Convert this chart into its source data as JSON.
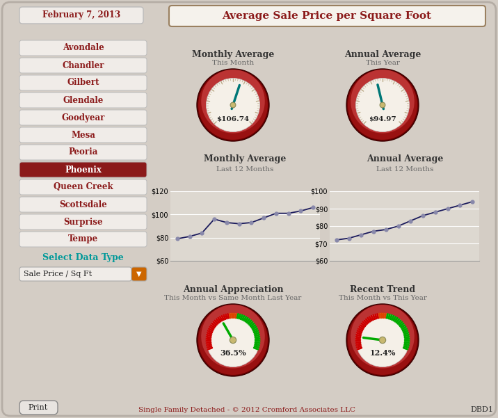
{
  "date": "February 7, 2013",
  "title": "Average Sale Price per Square Foot",
  "cities": [
    "Avondale",
    "Chandler",
    "Gilbert",
    "Glendale",
    "Goodyear",
    "Mesa",
    "Peoria",
    "Phoenix",
    "Queen Creek",
    "Scottsdale",
    "Surprise",
    "Tempe"
  ],
  "selected_city": "Phoenix",
  "select_label": "Select Data Type",
  "dropdown_label": "Sale Price / Sq Ft",
  "monthly_avg_value": "$106.74",
  "annual_avg_value": "$94.97",
  "monthly_avg_title": "Monthly Average",
  "monthly_avg_sub": "This Month",
  "annual_avg_title": "Annual Average",
  "annual_avg_sub": "This Year",
  "monthly_chart_title": "Monthly Average",
  "monthly_chart_sub": "Last 12 Months",
  "annual_chart_title": "Annual Average",
  "annual_chart_sub": "Last 12 Months",
  "appreciation_title": "Annual Appreciation",
  "appreciation_sub": "This Month vs Same Month Last Year",
  "appreciation_value": "36.5%",
  "trend_title": "Recent Trend",
  "trend_sub": "This Month vs This Year",
  "trend_value": "12.4%",
  "monthly_data": [
    79,
    81,
    84,
    96,
    93,
    92,
    93,
    97,
    101,
    101,
    103,
    106
  ],
  "annual_data": [
    72,
    73,
    75,
    77,
    78,
    80,
    83,
    86,
    88,
    90,
    92,
    94
  ],
  "monthly_ylim": [
    60,
    120
  ],
  "annual_ylim": [
    60,
    100
  ],
  "monthly_yticks": [
    60,
    80,
    100,
    120
  ],
  "annual_yticks": [
    60,
    70,
    80,
    90,
    100
  ],
  "bg_color": "#d4cdc5",
  "city_bg": "#f0ece8",
  "city_selected_bg": "#8b1a1a",
  "city_text": "#8b1a1a",
  "city_selected_text": "#ffffff",
  "title_color": "#8b1a1a",
  "footer_text": "Single Family Detached - © 2012 Cromford Associates LLC",
  "footer_color": "#8b1a1a",
  "dbid": "DBD1",
  "gauge_outer_color": "#8b1a1a",
  "chart_line_color": "#1a1a5c",
  "chart_marker_color": "#8888aa",
  "chart_bg": "#ddd8d0"
}
